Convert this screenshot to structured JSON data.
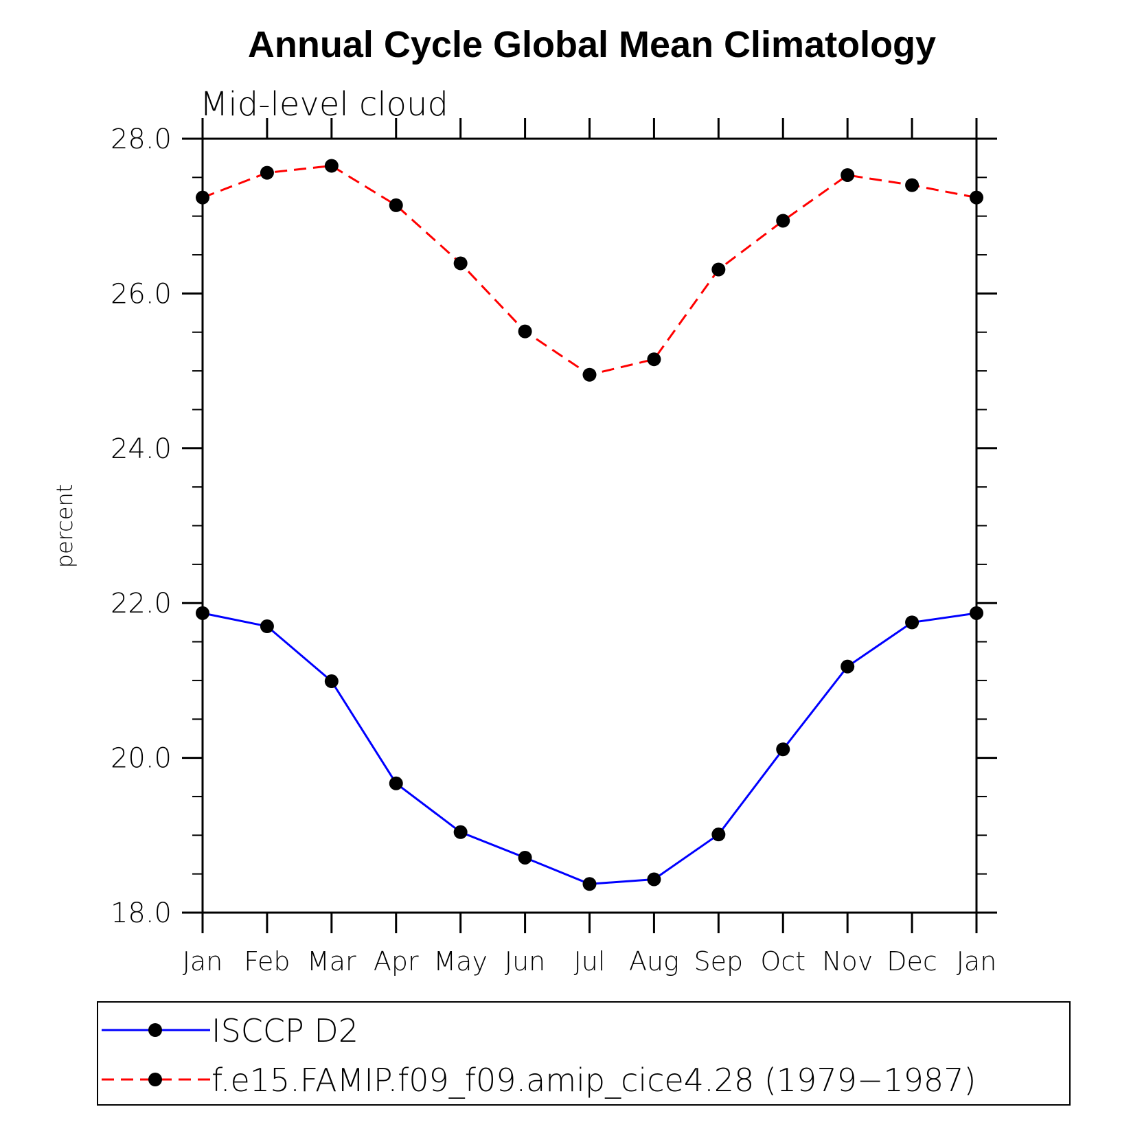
{
  "chart_data": {
    "type": "line",
    "title": "Annual Cycle Global Mean Climatology",
    "subtitle": "Mid-level cloud",
    "xlabel": "",
    "ylabel": "percent",
    "ylim": [
      18.0,
      28.0
    ],
    "yticks": [
      "18.0",
      "20.0",
      "22.0",
      "24.0",
      "26.0",
      "28.0"
    ],
    "ytick_values": [
      18,
      20,
      22,
      24,
      26,
      28
    ],
    "yminor_step": 0.5,
    "categories": [
      "Jan",
      "Feb",
      "Mar",
      "Apr",
      "May",
      "Jun",
      "Jul",
      "Aug",
      "Sep",
      "Oct",
      "Nov",
      "Dec",
      "Jan"
    ],
    "grid": false,
    "legend_position": "bottom",
    "series": [
      {
        "name": "ISCCP D2",
        "color": "#0000ff",
        "line_style": "solid",
        "marker": "filled-circle",
        "marker_color": "#000000",
        "values": [
          21.87,
          21.7,
          20.99,
          19.67,
          19.04,
          18.71,
          18.37,
          18.43,
          19.01,
          20.11,
          21.18,
          21.75,
          21.87
        ]
      },
      {
        "name": "f.e15.FAMIP.f09_f09.amip_cice4.28 (1979−1987)",
        "color": "#ff0000",
        "line_style": "dashed",
        "marker": "filled-circle",
        "marker_color": "#000000",
        "values": [
          27.24,
          27.56,
          27.65,
          27.14,
          26.39,
          25.51,
          24.95,
          25.15,
          26.31,
          26.94,
          27.53,
          27.4,
          27.24
        ]
      }
    ]
  }
}
